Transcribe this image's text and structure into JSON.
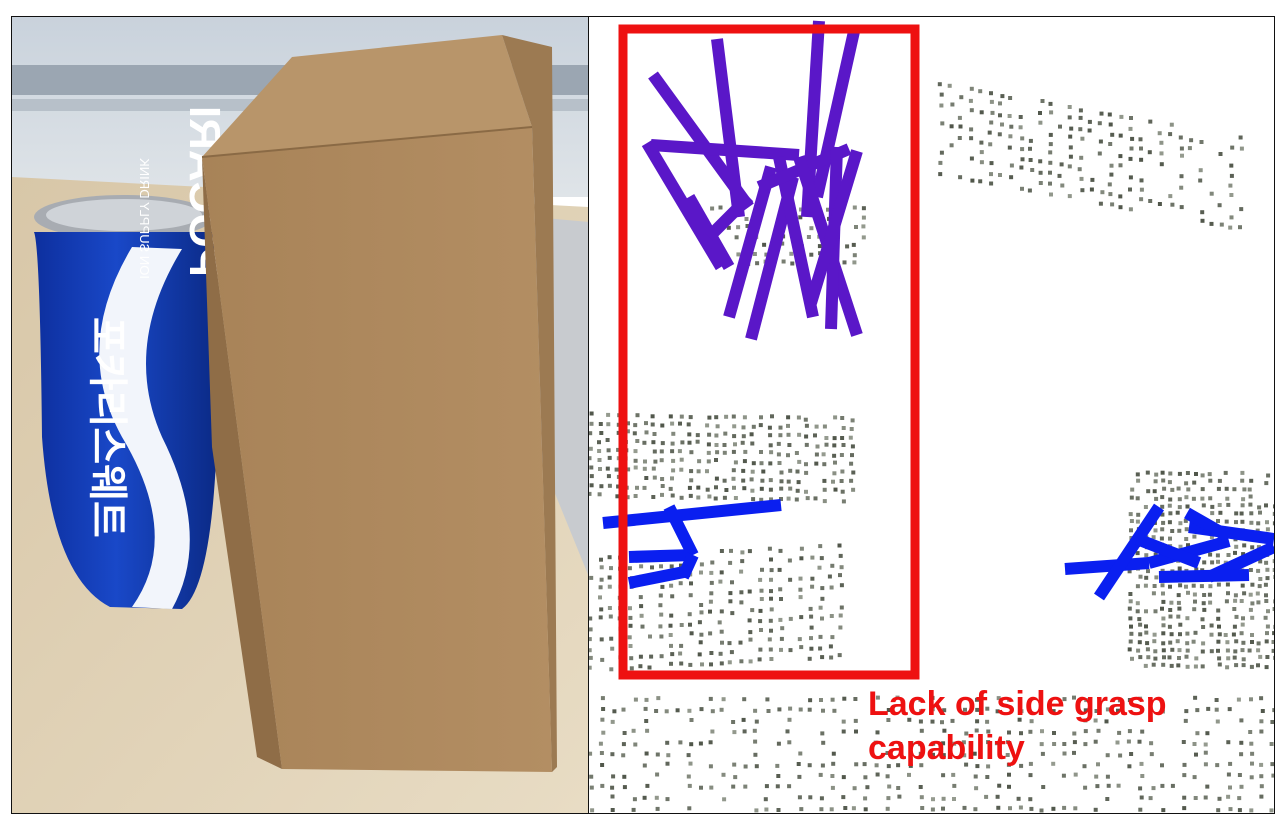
{
  "photo": {
    "can_text_brand": "POCARI",
    "can_text_small": "ION SUPPLY DRINK",
    "can_text_korean": "포카리스웨트"
  },
  "annotation": {
    "caption_line1": "Lack of side grasp",
    "caption_line2": "capability",
    "highlight_color": "#ee1111"
  },
  "colors": {
    "grasp_top": "#5a17c8",
    "grasp_side": "#0a1ff0",
    "points": "#6b7064"
  }
}
